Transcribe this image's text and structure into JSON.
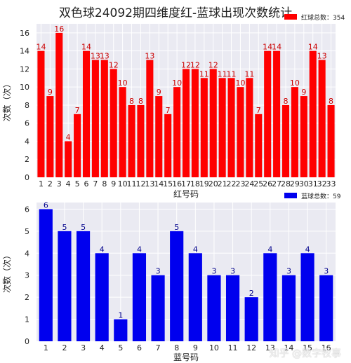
{
  "title": "双色球24092期四维度红-蓝球出现次数统计",
  "watermark": "知乎 @数字牧事",
  "chart_data": [
    {
      "type": "bar",
      "color": "#ff0000",
      "label_color": "#cc0000",
      "legend": "红球总数：354",
      "legend_position": "top-right",
      "xlabel": "红号码",
      "ylabel": "次数（次）",
      "ylim": [
        0,
        17
      ],
      "yticks": [
        0,
        2,
        4,
        6,
        8,
        10,
        12,
        14,
        16
      ],
      "grid": true,
      "categories": [
        "1",
        "2",
        "3",
        "4",
        "5",
        "6",
        "7",
        "8",
        "9",
        "10",
        "11",
        "12",
        "13",
        "14",
        "15",
        "16",
        "17",
        "18",
        "19",
        "20",
        "21",
        "22",
        "23",
        "24",
        "25",
        "26",
        "27",
        "28",
        "29",
        "30",
        "31",
        "32",
        "33"
      ],
      "values": [
        14,
        9,
        16,
        4,
        7,
        14,
        13,
        13,
        12,
        10,
        8,
        8,
        13,
        9,
        7,
        10,
        12,
        12,
        11,
        12,
        11,
        11,
        10,
        11,
        7,
        14,
        14,
        8,
        10,
        9,
        14,
        13,
        8
      ]
    },
    {
      "type": "bar",
      "color": "#0000ee",
      "label_color": "#00008b",
      "legend": "蓝球总数：59",
      "legend_position": "top-right",
      "xlabel": "蓝号码",
      "ylabel": "次数（次）",
      "ylim": [
        0,
        6.3
      ],
      "yticks": [
        0,
        1,
        2,
        3,
        4,
        5,
        6
      ],
      "grid": true,
      "categories": [
        "1",
        "2",
        "3",
        "4",
        "5",
        "6",
        "7",
        "8",
        "9",
        "10",
        "11",
        "12",
        "13",
        "14",
        "15",
        "16"
      ],
      "values": [
        6,
        5,
        5,
        4,
        1,
        4,
        3,
        5,
        4,
        3,
        3,
        2,
        4,
        3,
        4,
        3
      ]
    }
  ]
}
